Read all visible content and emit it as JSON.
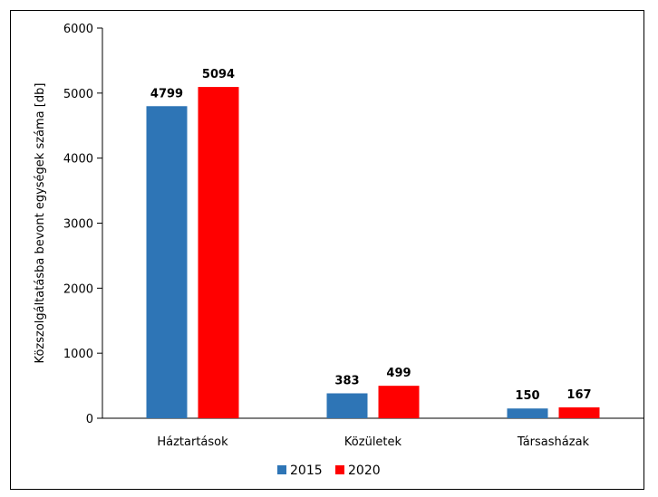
{
  "chart_data": {
    "type": "bar",
    "title": "",
    "xlabel": "",
    "ylabel": "Közszolgáltatásba bevont egységek száma [db]",
    "ylim": [
      0,
      6000
    ],
    "yticks": [
      0,
      1000,
      2000,
      3000,
      4000,
      5000,
      6000
    ],
    "categories": [
      "Háztartások",
      "Közületek",
      "Társasházak"
    ],
    "series": [
      {
        "name": "2015",
        "values": [
          4799,
          383,
          150
        ],
        "color": "#2E75B6"
      },
      {
        "name": "2020",
        "values": [
          5094,
          499,
          167
        ],
        "color": "#FF0000"
      }
    ],
    "grid": false,
    "legend_position": "bottom",
    "data_labels": true
  }
}
